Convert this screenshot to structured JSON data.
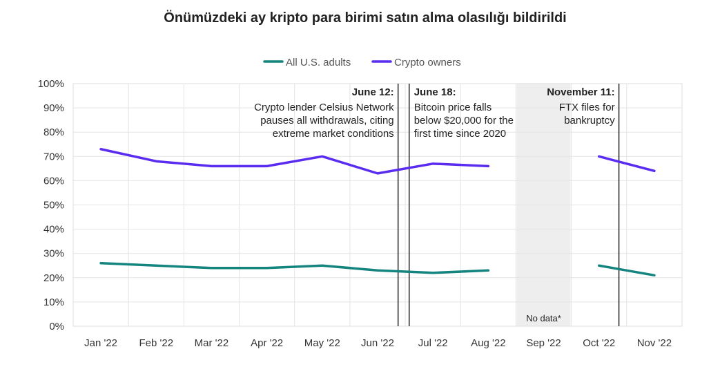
{
  "chart_data": {
    "type": "line",
    "title": "Önümüzdeki ay kripto para birimi satın alma olasılığı bildirildi",
    "xlabel": "",
    "ylabel": "",
    "ylim": [
      0,
      100
    ],
    "y_ticks": [
      "0%",
      "10%",
      "20%",
      "30%",
      "40%",
      "50%",
      "60%",
      "70%",
      "80%",
      "90%",
      "100%"
    ],
    "categories": [
      "Jan '22",
      "Feb '22",
      "Mar '22",
      "Apr '22",
      "May '22",
      "Jun '22",
      "Jul '22",
      "Aug '22",
      "Sep '22",
      "Oct '22",
      "Nov '22"
    ],
    "series": [
      {
        "name": "All U.S. adults",
        "color": "#14847f",
        "values": [
          26,
          25,
          24,
          24,
          25,
          23,
          22,
          23,
          null,
          25,
          21
        ]
      },
      {
        "name": "Crypto owners",
        "color": "#5a2cf0",
        "values": [
          73,
          68,
          66,
          66,
          70,
          63,
          67,
          66,
          null,
          70,
          64
        ]
      }
    ],
    "legend_position": "top-center",
    "grid": true,
    "shaded_region": {
      "category": "Sep '22",
      "label": "No data*",
      "color": "#eeeeee"
    },
    "annotations": [
      {
        "heading": "June 12:",
        "lines": [
          "Crypto lender Celsius Network",
          "pauses all withdrawals, citing",
          "extreme market conditions"
        ],
        "x_month": 5.37,
        "align": "right"
      },
      {
        "heading": "June 18:",
        "lines": [
          "Bitcoin price falls",
          "below $20,000 for the",
          "first time since 2020"
        ],
        "x_month": 5.57,
        "align": "left"
      },
      {
        "heading": "November 11:",
        "lines": [
          "FTX files for",
          "bankruptcy"
        ],
        "x_month": 9.36,
        "align": "right"
      }
    ]
  }
}
